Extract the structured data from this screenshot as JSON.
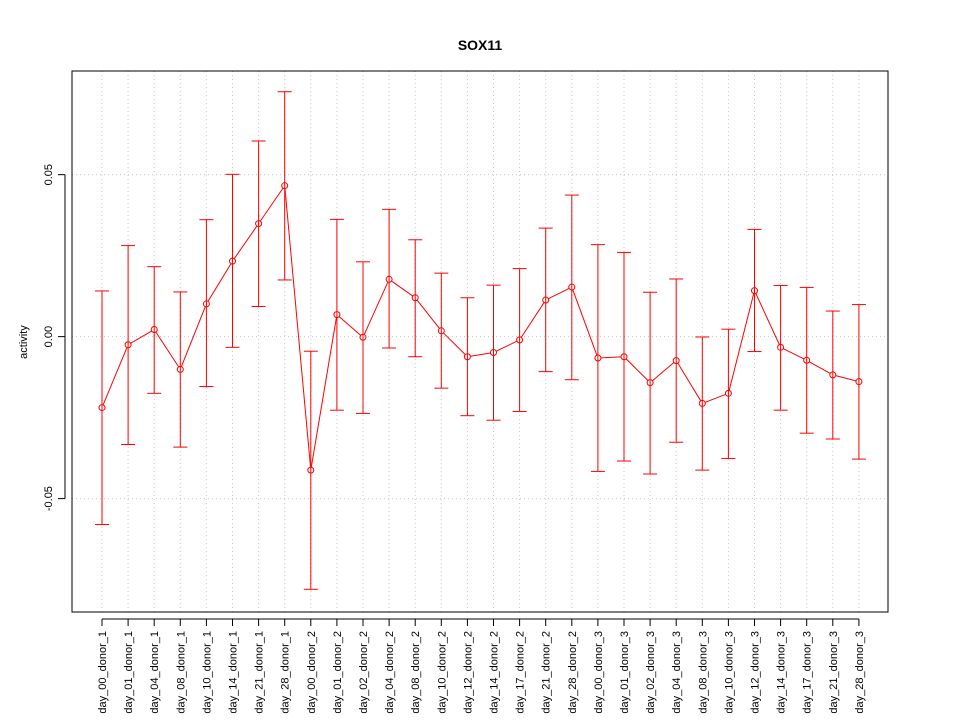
{
  "chart_data": {
    "type": "line",
    "title": "SOX11",
    "xlabel": "",
    "ylabel": "activity",
    "ylim": [
      -0.085,
      0.082
    ],
    "y_ticks": [
      -0.05,
      0.0,
      0.05
    ],
    "y_tick_labels": [
      "-0.05",
      "0.00",
      "0.05"
    ],
    "grid": true,
    "color": "#ff0000",
    "categories": [
      "day_00_donor_1",
      "day_01_donor_1",
      "day_04_donor_1",
      "day_08_donor_1",
      "day_10_donor_1",
      "day_14_donor_1",
      "day_21_donor_1",
      "day_28_donor_1",
      "day_00_donor_2",
      "day_01_donor_2",
      "day_02_donor_2",
      "day_04_donor_2",
      "day_08_donor_2",
      "day_10_donor_2",
      "day_12_donor_2",
      "day_14_donor_2",
      "day_17_donor_2",
      "day_21_donor_2",
      "day_28_donor_2",
      "day_00_donor_3",
      "day_01_donor_3",
      "day_02_donor_3",
      "day_04_donor_3",
      "day_08_donor_3",
      "day_10_donor_3",
      "day_12_donor_3",
      "day_14_donor_3",
      "day_17_donor_3",
      "day_21_donor_3",
      "day_28_donor_3"
    ],
    "series": [
      {
        "values": [
          -0.0219,
          -0.0025,
          0.0022,
          -0.0101,
          0.0101,
          0.0233,
          0.0349,
          0.0466,
          -0.0412,
          0.0068,
          -0.0002,
          0.0177,
          0.012,
          0.0018,
          -0.0062,
          -0.0049,
          -0.001,
          0.0113,
          0.0153,
          -0.0066,
          -0.0062,
          -0.0142,
          -0.0074,
          -0.0206,
          -0.0175,
          0.0142,
          -0.0033,
          -0.0073,
          -0.0118,
          -0.0139
        ],
        "lower": [
          -0.058,
          -0.0333,
          -0.0175,
          -0.0341,
          -0.0154,
          -0.0033,
          0.0093,
          0.0175,
          -0.078,
          -0.0227,
          -0.0237,
          -0.0035,
          -0.0062,
          -0.0159,
          -0.0244,
          -0.0258,
          -0.0231,
          -0.0108,
          -0.0133,
          -0.0416,
          -0.0384,
          -0.0424,
          -0.0326,
          -0.0412,
          -0.0376,
          -0.0046,
          -0.0227,
          -0.0298,
          -0.0316,
          -0.0378
        ],
        "upper": [
          0.0141,
          0.0281,
          0.0216,
          0.0138,
          0.0361,
          0.0501,
          0.0604,
          0.0756,
          -0.0045,
          0.0362,
          0.0231,
          0.0393,
          0.0299,
          0.0196,
          0.012,
          0.0159,
          0.021,
          0.0335,
          0.0437,
          0.0284,
          0.026,
          0.0137,
          0.0178,
          -0.0001,
          0.0023,
          0.0331,
          0.0158,
          0.0152,
          0.0079,
          0.0099
        ]
      }
    ]
  }
}
